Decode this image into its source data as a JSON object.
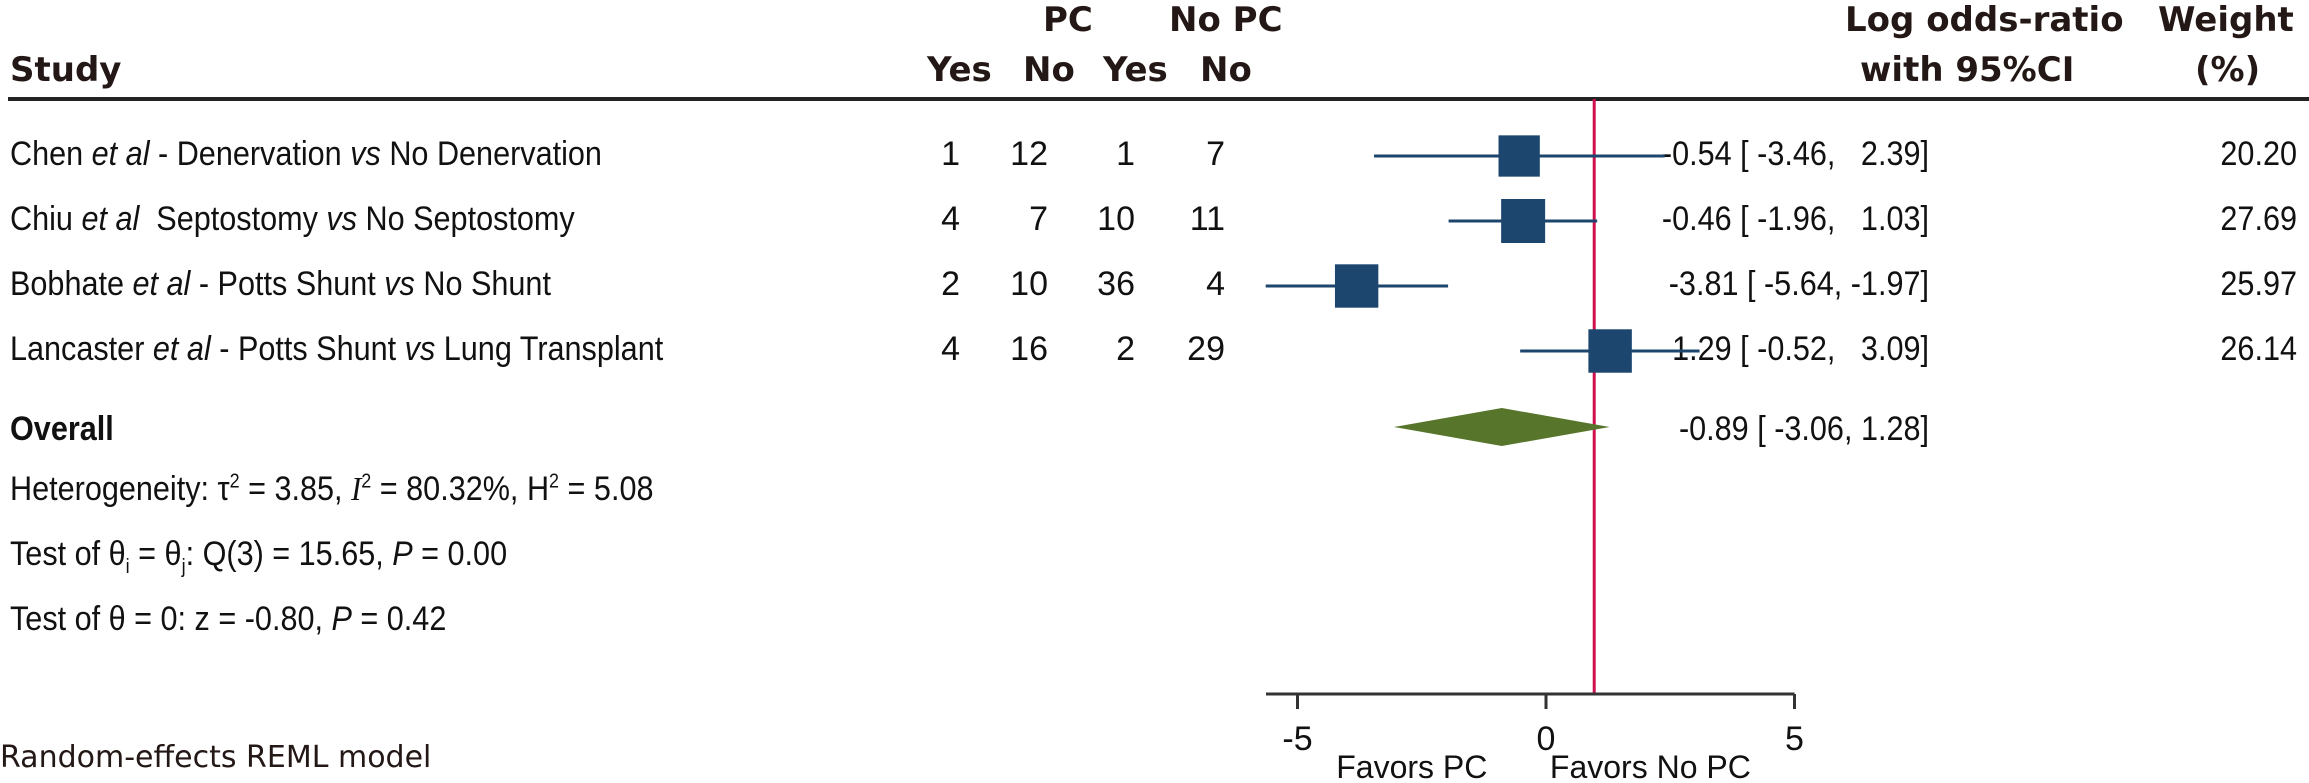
{
  "header": {
    "study": "Study",
    "pc_group": "PC",
    "nopc_group": "No PC",
    "pc_yes": "Yes",
    "pc_no": "No",
    "nopc_yes": "Yes",
    "nopc_no": "No",
    "effect_line1": "Log odds-ratio",
    "effect_line2": "with 95%CI",
    "weight_line1": "Weight",
    "weight_line2": "(%)"
  },
  "studies": [
    {
      "author": "Chen",
      "etal": "et al",
      "sep": " - ",
      "comparison_a": "Denervation",
      "vs": "vs",
      "comparison_b": "No Denervation",
      "pc_yes": "1",
      "pc_no": "12",
      "nopc_yes": "1",
      "nopc_no": "7",
      "effect_text": "-0.54 [ -3.46,   2.39]",
      "weight": "20.20"
    },
    {
      "author": "Chiu",
      "etal": "et al",
      "sep": "  ",
      "comparison_a": "Septostomy",
      "vs": "vs",
      "comparison_b": "No Septostomy",
      "pc_yes": "4",
      "pc_no": "7",
      "nopc_yes": "10",
      "nopc_no": "11",
      "effect_text": "-0.46 [ -1.96,   1.03]",
      "weight": "27.69"
    },
    {
      "author": "Bobhate",
      "etal": "et al",
      "sep": " - ",
      "comparison_a": "Potts Shunt",
      "vs": "vs",
      "comparison_b": "No Shunt",
      "pc_yes": "2",
      "pc_no": "10",
      "nopc_yes": "36",
      "nopc_no": "4",
      "effect_text": "-3.81 [ -5.64, -1.97]",
      "weight": "25.97"
    },
    {
      "author": "Lancaster",
      "etal": "et al",
      "sep": " - ",
      "comparison_a": "Potts Shunt",
      "vs": "vs",
      "comparison_b": "Lung Transplant",
      "pc_yes": "4",
      "pc_no": "16",
      "nopc_yes": "2",
      "nopc_no": "29",
      "effect_text": "1.29 [ -0.52,   3.09]",
      "weight": "26.14"
    }
  ],
  "overall": {
    "label": "Overall",
    "effect_text": "-0.89 [ -3.06,   1.28]"
  },
  "stats": {
    "heterogeneity_prefix": "Heterogeneity: τ",
    "tau2": " = 3.85, ",
    "i2_symbol": "I",
    "i2": " = 80.32%, H",
    "h2": " = 5.08",
    "q_prefix": "Test of θ",
    "q_i": "i",
    "q_mid": " = θ",
    "q_j": "j",
    "q_rest": ": Q(3) = 15.65, ",
    "q_p": "P",
    "q_pval": " = 0.00",
    "z_prefix": "Test of θ = 0: z = -0.80, ",
    "z_p": "P",
    "z_pval": " = 0.42",
    "sup2": "2"
  },
  "footer": {
    "model": "Random-effects REML model"
  },
  "colors": {
    "box": "#1c466e",
    "ci_line": "#1c466e",
    "diamond": "#57762c",
    "ref_line": "#d0104c",
    "axis": "#333333"
  },
  "chart_data": {
    "type": "forest",
    "title": "",
    "xlabel_left": "Favors PC",
    "xlabel_right": "Favors No PC",
    "xlim": [
      -5.6,
      3.5
    ],
    "xticks": [
      -5,
      0,
      5
    ],
    "xtick_labels": [
      "-5",
      "0",
      "5"
    ],
    "reference_line_x": 0.97,
    "series": [
      {
        "name": "Chen et al - Denervation vs No Denervation",
        "estimate": -0.54,
        "ci_low": -3.46,
        "ci_high": 2.39,
        "weight": 20.2
      },
      {
        "name": "Chiu et al Septostomy vs No Septostomy",
        "estimate": -0.46,
        "ci_low": -1.96,
        "ci_high": 1.03,
        "weight": 27.69
      },
      {
        "name": "Bobhate et al - Potts Shunt vs No Shunt",
        "estimate": -3.81,
        "ci_low": -5.64,
        "ci_high": -1.97,
        "weight": 25.97
      },
      {
        "name": "Lancaster et al - Potts Shunt vs Lung Transplant",
        "estimate": 1.29,
        "ci_low": -0.52,
        "ci_high": 3.09,
        "weight": 26.14
      }
    ],
    "overall": {
      "name": "Overall",
      "estimate": -0.89,
      "ci_low": -3.06,
      "ci_high": 1.28
    }
  }
}
